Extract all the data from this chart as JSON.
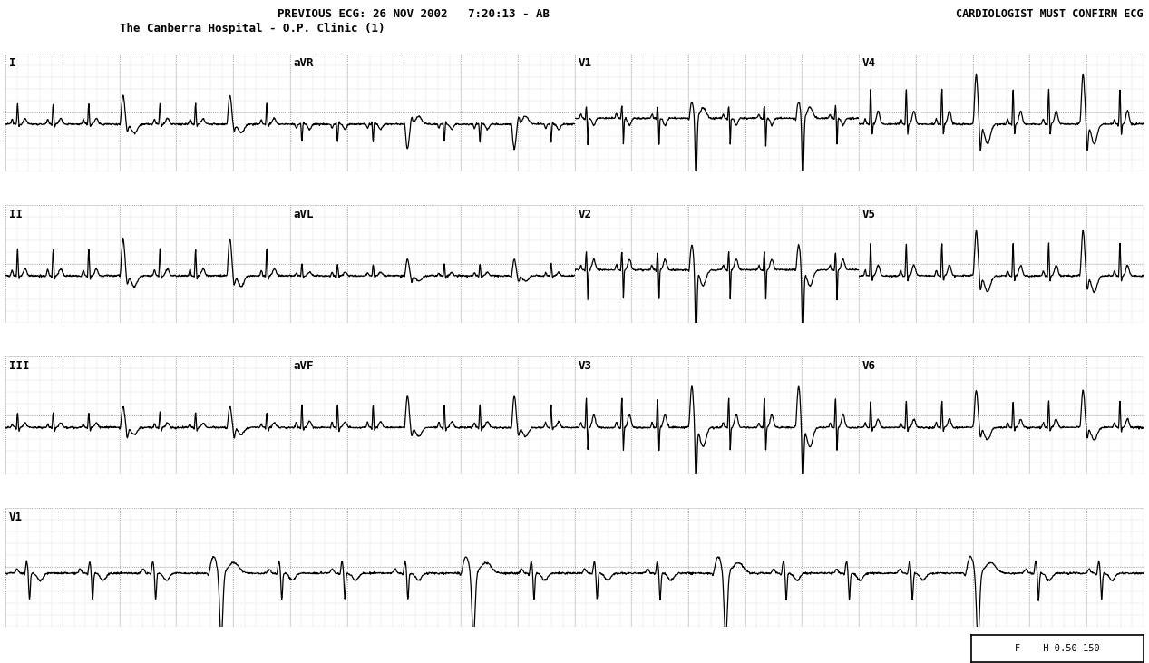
{
  "title_left": "PREVIOUS ECG: 26 NOV 2002   7:20:13 - AB",
  "title_left2": "The Canberra Hospital - O.P. Clinic (1)",
  "title_right": "CARDIOLOGIST MUST CONFIRM ECG",
  "bg_color": "#ffffff",
  "grid_minor_color": "#b8b8b8",
  "grid_major_color": "#888888",
  "ecg_color": "#000000",
  "lead_label_rhythm": "V1",
  "footer_text": "F    H 0.50 150",
  "row_labels": [
    [
      "I",
      "aVR",
      "V1",
      "V4"
    ],
    [
      "II",
      "aVL",
      "V2",
      "V5"
    ],
    [
      "III",
      "aVF",
      "V3",
      "V6"
    ]
  ],
  "lead_configs": {
    "I": {
      "r_amp": 0.35,
      "p_amp": 0.08,
      "t_amp": 0.1,
      "q_amp": -0.04,
      "s_amp": -0.05,
      "baseline": -0.2
    },
    "II": {
      "r_amp": 0.45,
      "p_amp": 0.1,
      "t_amp": 0.12,
      "q_amp": -0.05,
      "s_amp": -0.06,
      "baseline": -0.2
    },
    "III": {
      "r_amp": 0.25,
      "p_amp": 0.06,
      "t_amp": 0.08,
      "q_amp": -0.04,
      "s_amp": -0.07,
      "baseline": -0.2
    },
    "aVR": {
      "r_amp": -0.3,
      "p_amp": -0.07,
      "t_amp": -0.09,
      "q_amp": 0.04,
      "s_amp": 0.05,
      "baseline": -0.2
    },
    "aVL": {
      "r_amp": 0.2,
      "p_amp": 0.05,
      "t_amp": 0.06,
      "q_amp": -0.03,
      "s_amp": -0.04,
      "baseline": -0.2
    },
    "aVF": {
      "r_amp": 0.38,
      "p_amp": 0.09,
      "t_amp": 0.1,
      "q_amp": -0.05,
      "s_amp": -0.06,
      "baseline": -0.2
    },
    "V1": {
      "r_amp": 0.2,
      "p_amp": 0.07,
      "t_amp": -0.12,
      "q_amp": -0.04,
      "s_amp": -0.45,
      "baseline": -0.1
    },
    "V2": {
      "r_amp": 0.3,
      "p_amp": 0.08,
      "t_amp": 0.18,
      "q_amp": -0.04,
      "s_amp": -0.5,
      "baseline": -0.1
    },
    "V3": {
      "r_amp": 0.5,
      "p_amp": 0.08,
      "t_amp": 0.22,
      "q_amp": -0.04,
      "s_amp": -0.4,
      "baseline": -0.2
    },
    "V4": {
      "r_amp": 0.6,
      "p_amp": 0.09,
      "t_amp": 0.22,
      "q_amp": -0.05,
      "s_amp": -0.18,
      "baseline": -0.2
    },
    "V5": {
      "r_amp": 0.55,
      "p_amp": 0.09,
      "t_amp": 0.18,
      "q_amp": -0.05,
      "s_amp": -0.1,
      "baseline": -0.2
    },
    "V6": {
      "r_amp": 0.45,
      "p_amp": 0.08,
      "t_amp": 0.14,
      "q_amp": -0.04,
      "s_amp": -0.07,
      "baseline": -0.2
    }
  }
}
